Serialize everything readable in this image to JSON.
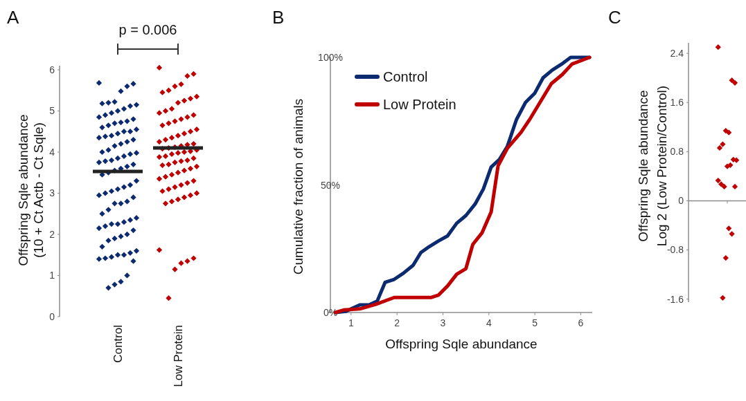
{
  "chart_data": [
    {
      "type": "scatter",
      "title": "A",
      "ylabel": "Offspring Sqle abundance\n(10 + Ct Actb - Ct Sqle)",
      "categories": [
        "Control",
        "Low Protein"
      ],
      "ylim": [
        0,
        6.1
      ],
      "yticks": [
        0,
        1,
        2,
        3,
        4,
        5,
        6
      ],
      "marker": "diamond",
      "annotations": [
        "p = 0.006"
      ],
      "series": [
        {
          "color": "#0b2a6f",
          "x": [
            "Control",
            "Control",
            "Control",
            "Control",
            "Control",
            "Control",
            "Control",
            "Control",
            "Control",
            "Control",
            "Control",
            "Control",
            "Control",
            "Control",
            "Control",
            "Control",
            "Control",
            "Control",
            "Control",
            "Control",
            "Control",
            "Control",
            "Control",
            "Control",
            "Control",
            "Control",
            "Control",
            "Control",
            "Control",
            "Control",
            "Control",
            "Control",
            "Control",
            "Control",
            "Control",
            "Control",
            "Control",
            "Control",
            "Control",
            "Control",
            "Control",
            "Control",
            "Control",
            "Control",
            "Control",
            "Control",
            "Control",
            "Control",
            "Control",
            "Control",
            "Control",
            "Control",
            "Control",
            "Control",
            "Control",
            "Control",
            "Control",
            "Control",
            "Control",
            "Control",
            "Control",
            "Control",
            "Control",
            "Control",
            "Control",
            "Control",
            "Control",
            "Control",
            "Control",
            "Control",
            "Control",
            "Control",
            "Control",
            "Control",
            "Control",
            "Control",
            "Control",
            "Control",
            "Control",
            "Control",
            "Control",
            "Control",
            "Control",
            "Control"
          ],
          "values": [
            5.68,
            5.66,
            5.6,
            5.48,
            5.22,
            5.2,
            5.18,
            5.15,
            5.12,
            5.05,
            5.0,
            4.95,
            4.9,
            4.85,
            4.8,
            4.75,
            4.72,
            4.7,
            4.65,
            4.6,
            4.55,
            4.5,
            4.5,
            4.45,
            4.4,
            4.38,
            4.35,
            4.3,
            4.25,
            4.2,
            4.15,
            4.05,
            4.0,
            3.98,
            3.95,
            3.9,
            3.85,
            3.8,
            3.78,
            3.75,
            3.7,
            3.65,
            3.6,
            3.55,
            3.5,
            3.45,
            3.3,
            3.2,
            3.15,
            3.1,
            3.05,
            3.0,
            2.95,
            2.9,
            2.8,
            2.75,
            2.75,
            2.6,
            2.5,
            2.4,
            2.35,
            2.3,
            2.25,
            2.25,
            2.2,
            2.15,
            2.1,
            2.0,
            1.95,
            1.9,
            1.85,
            1.7,
            1.6,
            1.55,
            1.5,
            1.5,
            1.45,
            1.42,
            1.4,
            1.35,
            1.0,
            0.85,
            0.78,
            0.7
          ]
        },
        {
          "color": "#c00000",
          "x": [
            "Low Protein",
            "Low Protein",
            "Low Protein",
            "Low Protein",
            "Low Protein",
            "Low Protein",
            "Low Protein",
            "Low Protein",
            "Low Protein",
            "Low Protein",
            "Low Protein",
            "Low Protein",
            "Low Protein",
            "Low Protein",
            "Low Protein",
            "Low Protein",
            "Low Protein",
            "Low Protein",
            "Low Protein",
            "Low Protein",
            "Low Protein",
            "Low Protein",
            "Low Protein",
            "Low Protein",
            "Low Protein",
            "Low Protein",
            "Low Protein",
            "Low Protein",
            "Low Protein",
            "Low Protein",
            "Low Protein",
            "Low Protein",
            "Low Protein",
            "Low Protein",
            "Low Protein",
            "Low Protein",
            "Low Protein",
            "Low Protein",
            "Low Protein",
            "Low Protein",
            "Low Protein",
            "Low Protein",
            "Low Protein",
            "Low Protein",
            "Low Protein",
            "Low Protein",
            "Low Protein",
            "Low Protein",
            "Low Protein",
            "Low Protein",
            "Low Protein",
            "Low Protein",
            "Low Protein",
            "Low Protein",
            "Low Protein",
            "Low Protein",
            "Low Protein",
            "Low Protein",
            "Low Protein",
            "Low Protein",
            "Low Protein",
            "Low Protein",
            "Low Protein",
            "Low Protein",
            "Low Protein",
            "Low Protein",
            "Low Protein",
            "Low Protein",
            "Low Protein",
            "Low Protein",
            "Low Protein"
          ],
          "values": [
            6.05,
            5.9,
            5.85,
            5.65,
            5.6,
            5.5,
            5.45,
            5.35,
            5.3,
            5.25,
            5.2,
            5.05,
            5.0,
            4.95,
            4.9,
            4.85,
            4.8,
            4.75,
            4.7,
            4.65,
            4.55,
            4.5,
            4.45,
            4.4,
            4.35,
            4.3,
            4.25,
            4.2,
            4.18,
            4.15,
            4.12,
            4.1,
            4.08,
            4.05,
            4.02,
            4.0,
            3.98,
            3.95,
            3.9,
            3.88,
            3.85,
            3.8,
            3.78,
            3.75,
            3.7,
            3.68,
            3.65,
            3.6,
            3.55,
            3.5,
            3.45,
            3.4,
            3.35,
            3.3,
            3.25,
            3.2,
            3.15,
            3.1,
            3.05,
            3.0,
            2.95,
            2.9,
            2.85,
            2.8,
            2.75,
            1.62,
            1.42,
            1.35,
            1.3,
            1.15,
            0.45
          ]
        }
      ],
      "ref_lines": [
        {
          "axis": "y",
          "value": 3.53,
          "color": "#222222"
        },
        {
          "axis": "y",
          "value": 4.1,
          "color": "#222222"
        }
      ]
    },
    {
      "type": "line",
      "title": "B",
      "xlabel": "Offspring Sqle abundance",
      "ylabel": "Cumulative fraction of animals",
      "xlim": [
        0.55,
        6.25
      ],
      "xticks": [
        1,
        2,
        3,
        4,
        5,
        6
      ],
      "ylim": [
        0,
        100
      ],
      "yticks": [
        {
          "value": 0,
          "label": "0%"
        },
        {
          "value": 50,
          "label": "50%"
        },
        {
          "value": 100,
          "label": "100%"
        }
      ],
      "legend": "top left",
      "series": [
        {
          "name": "Control",
          "color": "#0b2a6f",
          "x": [
            0.66,
            0.89,
            1.19,
            1.39,
            1.57,
            1.74,
            1.94,
            2.14,
            2.35,
            2.52,
            2.7,
            2.9,
            3.1,
            3.3,
            3.5,
            3.7,
            3.88,
            4.05,
            4.23,
            4.4,
            4.6,
            4.8,
            5.0,
            5.18,
            5.38,
            5.58,
            5.78,
            6.19
          ],
          "values": [
            0,
            0.5,
            3,
            3,
            4.5,
            11.8,
            13,
            15.4,
            18.5,
            23.5,
            25.8,
            28,
            30,
            35,
            38,
            42.5,
            48.4,
            57,
            60,
            65,
            75.6,
            82.4,
            86,
            92,
            95,
            97.3,
            100,
            100
          ]
        },
        {
          "name": "Low Protein",
          "color": "#c00000",
          "x": [
            0.66,
            0.84,
            1.19,
            1.54,
            1.94,
            2.75,
            2.9,
            3.1,
            3.3,
            3.5,
            3.65,
            3.85,
            4.05,
            4.2,
            4.4,
            4.7,
            4.9,
            5.1,
            5.36,
            5.6,
            5.81,
            6.19
          ],
          "values": [
            0,
            1,
            1.4,
            3.2,
            5.9,
            5.9,
            6.8,
            10.4,
            15,
            17.2,
            26.7,
            31.2,
            39.4,
            57.5,
            64.3,
            70.6,
            76,
            82,
            89.7,
            93.3,
            97.4,
            100
          ]
        }
      ]
    },
    {
      "type": "scatter",
      "title": "C",
      "ylabel": "Offspring Sqle abundance\nLog 2 (Low Protein/Control)",
      "categories": [
        null
      ],
      "ylim": [
        -1.65,
        2.57
      ],
      "yticks": [
        -1.6,
        -0.8,
        0,
        0.8,
        1.6,
        2.4
      ],
      "marker": "diamond",
      "series": [
        {
          "color": "#c00000",
          "x": [
            null,
            null,
            null,
            null,
            null,
            null,
            null,
            null,
            null,
            null,
            null,
            null,
            null,
            null,
            null,
            null,
            null,
            null,
            null
          ],
          "values": [
            2.5,
            1.92,
            1.96,
            1.11,
            1.14,
            0.92,
            0.86,
            0.66,
            0.67,
            0.58,
            0.56,
            0.23,
            0.27,
            0.33,
            0.23,
            -0.54,
            -0.45,
            -0.93,
            -1.58
          ]
        }
      ]
    }
  ]
}
